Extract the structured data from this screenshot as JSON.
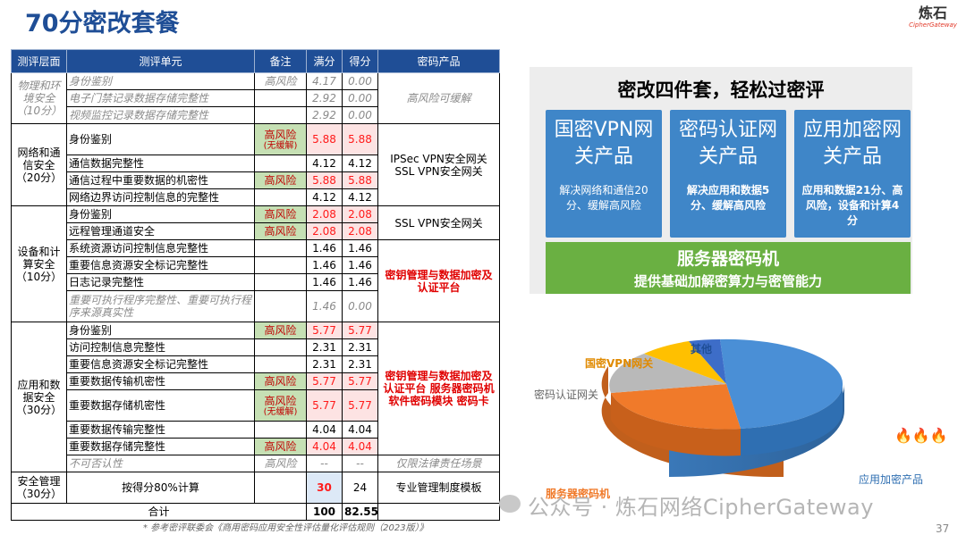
{
  "title": "70分密改套餐",
  "logo": {
    "cn": "炼石",
    "en": "CipherGateway"
  },
  "table": {
    "headers": [
      "测评层面",
      "测评单元",
      "备注",
      "满分",
      "得分",
      "密码产品"
    ],
    "areas": {
      "physical": "物理和环境安全（10分）",
      "network": "网络和通信安全（20分）",
      "device": "设备和计算安全（10分）",
      "app": "应用和数据安全（30分）",
      "mgmt": "安全管理（30分）"
    },
    "rows": {
      "p1": {
        "unit": "身份鉴别",
        "note": "高风险",
        "full": "4.17",
        "score": "0.00"
      },
      "p2": {
        "unit": "电子门禁记录数据存储完整性",
        "full": "2.92",
        "score": "0.00"
      },
      "p3": {
        "unit": "视频监控记录数据存储完整性",
        "full": "2.92",
        "score": "0.00"
      },
      "n1": {
        "unit": "身份鉴别",
        "note": "高风险",
        "note2": "(无缓解)",
        "full": "5.88",
        "score": "5.88"
      },
      "n2": {
        "unit": "通信数据完整性",
        "full": "4.12",
        "score": "4.12"
      },
      "n3": {
        "unit": "通信过程中重要数据的机密性",
        "note": "高风险",
        "full": "5.88",
        "score": "5.88"
      },
      "n4": {
        "unit": "网络边界访问控制信息的完整性",
        "full": "4.12",
        "score": "4.12"
      },
      "d1": {
        "unit": "身份鉴别",
        "note": "高风险",
        "full": "2.08",
        "score": "2.08"
      },
      "d2": {
        "unit": "远程管理通道安全",
        "note": "高风险",
        "full": "2.08",
        "score": "2.08"
      },
      "d3": {
        "unit": "系统资源访问控制信息完整性",
        "full": "1.46",
        "score": "1.46"
      },
      "d4": {
        "unit": "重要信息资源安全标记完整性",
        "full": "1.46",
        "score": "1.46"
      },
      "d5": {
        "unit": "日志记录完整性",
        "full": "1.46",
        "score": "1.46"
      },
      "d6": {
        "unit": "重要可执行程序完整性、重要可执行程序来源真实性",
        "full": "1.46",
        "score": "0.00"
      },
      "a1": {
        "unit": "身份鉴别",
        "note": "高风险",
        "full": "5.77",
        "score": "5.77"
      },
      "a2": {
        "unit": "访问控制信息完整性",
        "full": "2.31",
        "score": "2.31"
      },
      "a3": {
        "unit": "重要信息资源安全标记完整性",
        "full": "2.31",
        "score": "2.31"
      },
      "a4": {
        "unit": "重要数据传输机密性",
        "note": "高风险",
        "full": "5.77",
        "score": "5.77"
      },
      "a5": {
        "unit": "重要数据存储机密性",
        "note": "高风险",
        "note2": "(无缓解)",
        "full": "5.77",
        "score": "5.77"
      },
      "a6": {
        "unit": "重要数据传输完整性",
        "full": "4.04",
        "score": "4.04"
      },
      "a7": {
        "unit": "重要数据存储完整性",
        "note": "高风险",
        "full": "4.04",
        "score": "4.04"
      },
      "a8": {
        "unit": "不可否认性",
        "note": "高风险",
        "full": "--",
        "score": "--"
      },
      "m1": {
        "unit": "按得分80%计算",
        "full": "30",
        "score": "24"
      },
      "total": {
        "label": "合计",
        "full": "100",
        "score": "82.55"
      }
    },
    "products": {
      "physical": "高风险可缓解",
      "network": "IPSec VPN安全网关 SSL VPN安全网关",
      "device_top": "SSL VPN安全网关",
      "device_bottom": "密钥管理与数据加密及认证平台",
      "app_main": "密钥管理与数据加密及认证平台 服务器密码机 软件密码模块 密码卡",
      "app_law": "仅限法律责任场景",
      "mgmt": "专业管理制度模板"
    }
  },
  "footnote": "* 参考密评联委会《商用密码应用安全性评估量化评估规则（2023版）》",
  "page_number": "37",
  "panel": {
    "title": "密改四件套，轻松过密评",
    "boxes": [
      {
        "head": "国密VPN网关产品",
        "desc": "解决网络和通信20分、缓解高风险"
      },
      {
        "head": "密码认证网关产品",
        "desc": "解决应用和数据5分、缓解高风险"
      },
      {
        "head": "应用加密网关产品",
        "desc": "应用和数据21分、高风险，设备和计算4分"
      }
    ],
    "server_title": "服务器密码机",
    "server_sub": "提供基础加解密算力与密管能力"
  },
  "pie": {
    "labels": {
      "other": "其他",
      "vpn": "国密VPN网关",
      "auth": "密码认证网关",
      "server": "服务器密码机",
      "app": "应用加密产品"
    },
    "colors": {
      "app": "#4a8fd6",
      "server": "#f07a2a",
      "auth": "#b9b9b9",
      "vpn": "#ffc000",
      "other": "#3d6dc8"
    }
  },
  "watermark": "公众号 · 炼石网络CipherGateway"
}
